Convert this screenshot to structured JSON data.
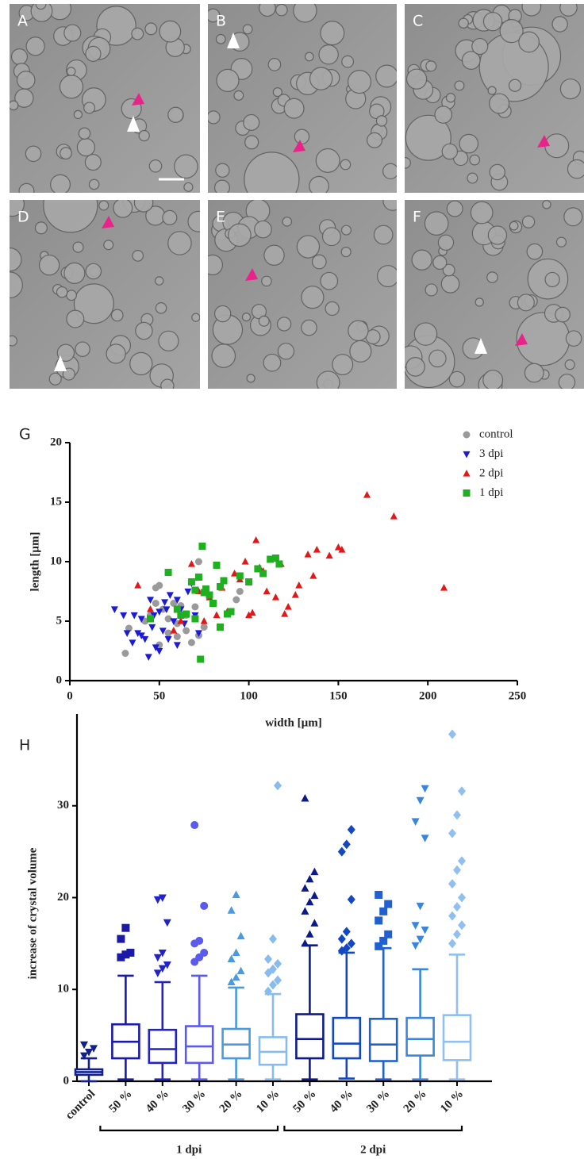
{
  "figure_panels": [
    "A",
    "B",
    "C",
    "D",
    "E",
    "F"
  ],
  "chart_data": [
    {
      "type": "scatter",
      "label": "G",
      "x_label": "width [µm]",
      "y_label": "length [µm]",
      "xlim": [
        0,
        250
      ],
      "xticks": [
        0,
        50,
        100,
        150,
        200,
        250
      ],
      "ylim": [
        0,
        20
      ],
      "yticks": [
        0,
        5,
        10,
        15,
        20
      ],
      "legend": "top-right",
      "series": [
        {
          "name": "control",
          "color": "#9a9a9a",
          "marker": "circle",
          "x": [
            31,
            33,
            45,
            48,
            50,
            48,
            52,
            55,
            58,
            60,
            62,
            65,
            68,
            70,
            72,
            72,
            75,
            95,
            93,
            50,
            60,
            55,
            65,
            42
          ],
          "values": [
            2.3,
            4.4,
            5.5,
            7.8,
            8,
            6.5,
            6,
            5.2,
            6.5,
            4.8,
            6.3,
            5.5,
            3.2,
            6.2,
            10,
            3.8,
            4.5,
            7.5,
            6.8,
            3,
            3.7,
            4,
            4.2,
            5
          ]
        },
        {
          "name": "3 dpi",
          "color": "#1a1ad8",
          "marker": "triangle-down",
          "x": [
            25,
            30,
            32,
            35,
            38,
            40,
            42,
            44,
            45,
            46,
            48,
            50,
            50,
            52,
            54,
            55,
            56,
            58,
            60,
            62,
            64,
            66,
            68,
            70,
            72,
            47,
            53,
            60,
            40,
            36
          ],
          "values": [
            6,
            5.5,
            4,
            3.2,
            4,
            5.2,
            3.5,
            2,
            6.8,
            4.5,
            2.8,
            5.8,
            2.5,
            4.2,
            6,
            3.5,
            7.2,
            5,
            3,
            6,
            4.8,
            7.5,
            8.2,
            5.5,
            4,
            5.5,
            6.6,
            6.8,
            3.8,
            5.5
          ]
        },
        {
          "name": "2 dpi",
          "color": "#e01818",
          "marker": "triangle-up",
          "x": [
            38,
            45,
            58,
            62,
            68,
            72,
            75,
            78,
            82,
            85,
            88,
            92,
            95,
            98,
            100,
            102,
            104,
            106,
            110,
            115,
            118,
            120,
            122,
            126,
            128,
            133,
            136,
            138,
            145,
            150,
            152,
            166,
            181,
            209,
            108
          ],
          "values": [
            8,
            6,
            4.2,
            5,
            9.8,
            7.5,
            5,
            7,
            5.5,
            7.8,
            5.8,
            9,
            8.5,
            10,
            5.5,
            5.7,
            11.8,
            9.5,
            7.5,
            7,
            9.8,
            5.6,
            6.2,
            7.2,
            8,
            10.6,
            8.8,
            11,
            10.5,
            11.2,
            11,
            15.6,
            13.8,
            7.8,
            9.2
          ]
        },
        {
          "name": "1 dpi",
          "color": "#1fb01f",
          "marker": "square",
          "x": [
            45,
            55,
            60,
            62,
            65,
            68,
            70,
            72,
            74,
            73,
            75,
            76,
            78,
            80,
            82,
            84,
            86,
            88,
            90,
            95,
            100,
            105,
            108,
            112,
            115,
            117,
            84,
            70
          ],
          "values": [
            5.2,
            9.1,
            6,
            5.5,
            5.6,
            8.3,
            7.6,
            8.7,
            11.3,
            1.8,
            7.4,
            7.7,
            7.2,
            6.5,
            9.7,
            4.5,
            8.4,
            5.6,
            5.8,
            8.8,
            8.3,
            9.4,
            9,
            10.2,
            10.3,
            9.8,
            7.9,
            5.2
          ]
        }
      ]
    },
    {
      "type": "box",
      "label": "H",
      "y_label": "increase of crystal volume",
      "ylim": [
        0,
        40
      ],
      "yticks": [
        0,
        10,
        20,
        30
      ],
      "categories": [
        "control",
        "50 %",
        "40 %",
        "30 %",
        "20 %",
        "10 %",
        "50 %",
        "40 %",
        "30 %",
        "20 %",
        "10 %"
      ],
      "groups": [
        "1 dpi",
        "2 dpi"
      ],
      "boxes": [
        {
          "color": "#12208c",
          "marker": "triangle-down",
          "min": 0,
          "q1": 0.7,
          "median": 1,
          "q3": 1.3,
          "max": 2.5,
          "outliers": [
            2.8,
            3.2,
            3.6,
            4
          ]
        },
        {
          "color": "#1a1aa6",
          "marker": "square",
          "min": 0.2,
          "q1": 2.5,
          "median": 4.3,
          "q3": 6.2,
          "max": 11.5,
          "outliers": [
            13.5,
            13.8,
            14,
            15.5,
            16.7
          ]
        },
        {
          "color": "#2222cc",
          "marker": "triangle-down",
          "min": 0.2,
          "q1": 2,
          "median": 3.5,
          "q3": 5.6,
          "max": 10.8,
          "outliers": [
            11.8,
            12.3,
            12.7,
            13.5,
            14,
            17.3,
            19.8,
            20
          ]
        },
        {
          "color": "#5a5aee",
          "marker": "circle",
          "min": 0.2,
          "q1": 2,
          "median": 3.8,
          "q3": 6,
          "max": 11.5,
          "outliers": [
            13,
            13.5,
            14,
            15,
            15.3,
            19.1,
            27.9
          ]
        },
        {
          "color": "#4a9ae0",
          "marker": "triangle-up",
          "min": 0.2,
          "q1": 2.5,
          "median": 4,
          "q3": 5.7,
          "max": 10.2,
          "outliers": [
            10.8,
            11.3,
            12,
            13.3,
            14,
            15.8,
            18.6,
            20.3
          ]
        },
        {
          "color": "#88bbee",
          "marker": "diamond",
          "min": 0.2,
          "q1": 1.8,
          "median": 3.2,
          "q3": 4.8,
          "max": 9.5,
          "outliers": [
            9.8,
            10.5,
            11,
            11.8,
            12.2,
            12.8,
            13.3,
            15.5,
            32.2
          ]
        },
        {
          "color": "#0d1b8a",
          "marker": "triangle-up",
          "min": 0.2,
          "q1": 2.5,
          "median": 4.6,
          "q3": 7.3,
          "max": 14.8,
          "outliers": [
            15,
            16,
            17.2,
            18.5,
            19.5,
            20.2,
            21,
            22,
            22.8,
            30.8
          ]
        },
        {
          "color": "#1448c0",
          "marker": "diamond",
          "min": 0.3,
          "q1": 2.5,
          "median": 4.1,
          "q3": 6.9,
          "max": 14,
          "outliers": [
            14.2,
            14.5,
            15,
            15.5,
            16.3,
            19.8,
            25,
            25.8,
            27.4
          ]
        },
        {
          "color": "#2060d0",
          "marker": "square",
          "min": 0.2,
          "q1": 2.2,
          "median": 4,
          "q3": 6.8,
          "max": 14.5,
          "outliers": [
            14.7,
            15.3,
            16,
            17.5,
            18.5,
            19.3,
            20.3
          ]
        },
        {
          "color": "#3a86dc",
          "marker": "triangle-down",
          "min": 0.2,
          "q1": 2.8,
          "median": 4.6,
          "q3": 6.9,
          "max": 12.2,
          "outliers": [
            14.8,
            15.5,
            16.5,
            17,
            19.1,
            26.5,
            28.3,
            30.6,
            31.9
          ]
        },
        {
          "color": "#90bff0",
          "marker": "diamond",
          "min": 0.2,
          "q1": 2.3,
          "median": 4.3,
          "q3": 7.2,
          "max": 13.8,
          "outliers": [
            15,
            16,
            17,
            18,
            19,
            20,
            21.5,
            23,
            24,
            27,
            29,
            31.6,
            37.8
          ]
        }
      ]
    }
  ]
}
